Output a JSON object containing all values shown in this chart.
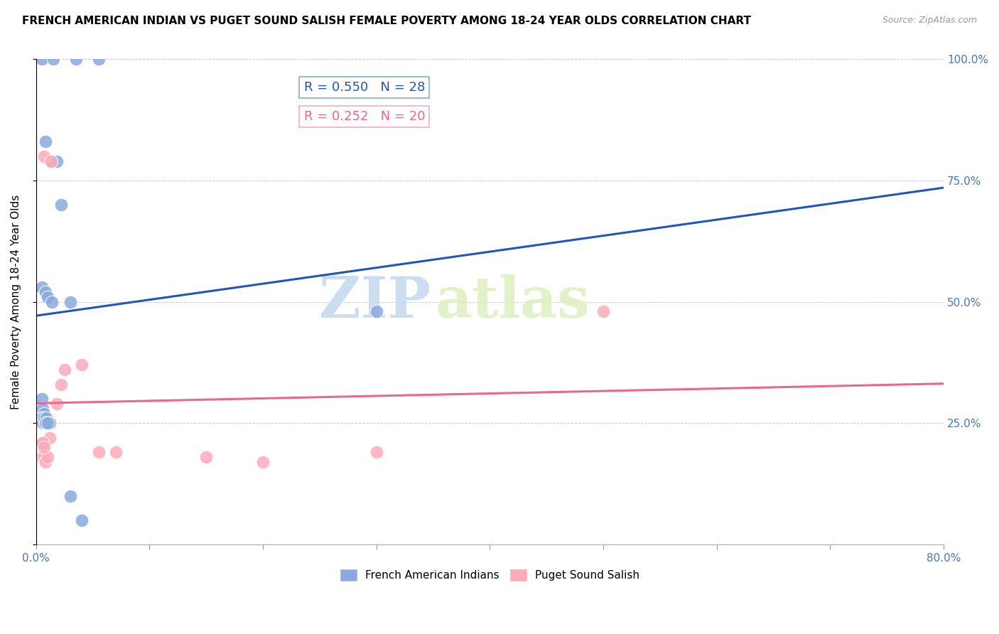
{
  "title": "FRENCH AMERICAN INDIAN VS PUGET SOUND SALISH FEMALE POVERTY AMONG 18-24 YEAR OLDS CORRELATION CHART",
  "source": "Source: ZipAtlas.com",
  "ylabel": "Female Poverty Among 18-24 Year Olds",
  "xlim": [
    0.0,
    0.8
  ],
  "ylim": [
    0.0,
    1.0
  ],
  "blue_R": 0.55,
  "blue_N": 28,
  "pink_R": 0.252,
  "pink_N": 20,
  "blue_color": "#88AADD",
  "pink_color": "#FFAABB",
  "blue_line_color": "#2255BB",
  "pink_line_color": "#EE6688",
  "blue_label": "French American Indians",
  "pink_label": "Puget Sound Salish",
  "blue_scatter_x": [
    0.005,
    0.015,
    0.035,
    0.055,
    0.008,
    0.013,
    0.018,
    0.022,
    0.005,
    0.008,
    0.01,
    0.014,
    0.005,
    0.006,
    0.007,
    0.005,
    0.006,
    0.007,
    0.008,
    0.009,
    0.01,
    0.012,
    0.008,
    0.01,
    0.03,
    0.04,
    0.3,
    0.03
  ],
  "blue_scatter_y": [
    1.0,
    1.0,
    1.0,
    1.0,
    0.83,
    0.79,
    0.79,
    0.7,
    0.53,
    0.52,
    0.51,
    0.5,
    0.3,
    0.28,
    0.27,
    0.26,
    0.25,
    0.26,
    0.25,
    0.26,
    0.25,
    0.25,
    0.25,
    0.25,
    0.1,
    0.05,
    0.48,
    0.5
  ],
  "pink_scatter_x": [
    0.007,
    0.013,
    0.018,
    0.022,
    0.005,
    0.007,
    0.008,
    0.01,
    0.012,
    0.005,
    0.006,
    0.007,
    0.025,
    0.04,
    0.5,
    0.3,
    0.15,
    0.2,
    0.055,
    0.07
  ],
  "pink_scatter_y": [
    0.8,
    0.79,
    0.29,
    0.33,
    0.18,
    0.18,
    0.17,
    0.18,
    0.22,
    0.21,
    0.21,
    0.2,
    0.36,
    0.37,
    0.48,
    0.19,
    0.18,
    0.17,
    0.19,
    0.19
  ],
  "watermark_zip": "ZIP",
  "watermark_atlas": "atlas",
  "background_color": "#FFFFFF"
}
